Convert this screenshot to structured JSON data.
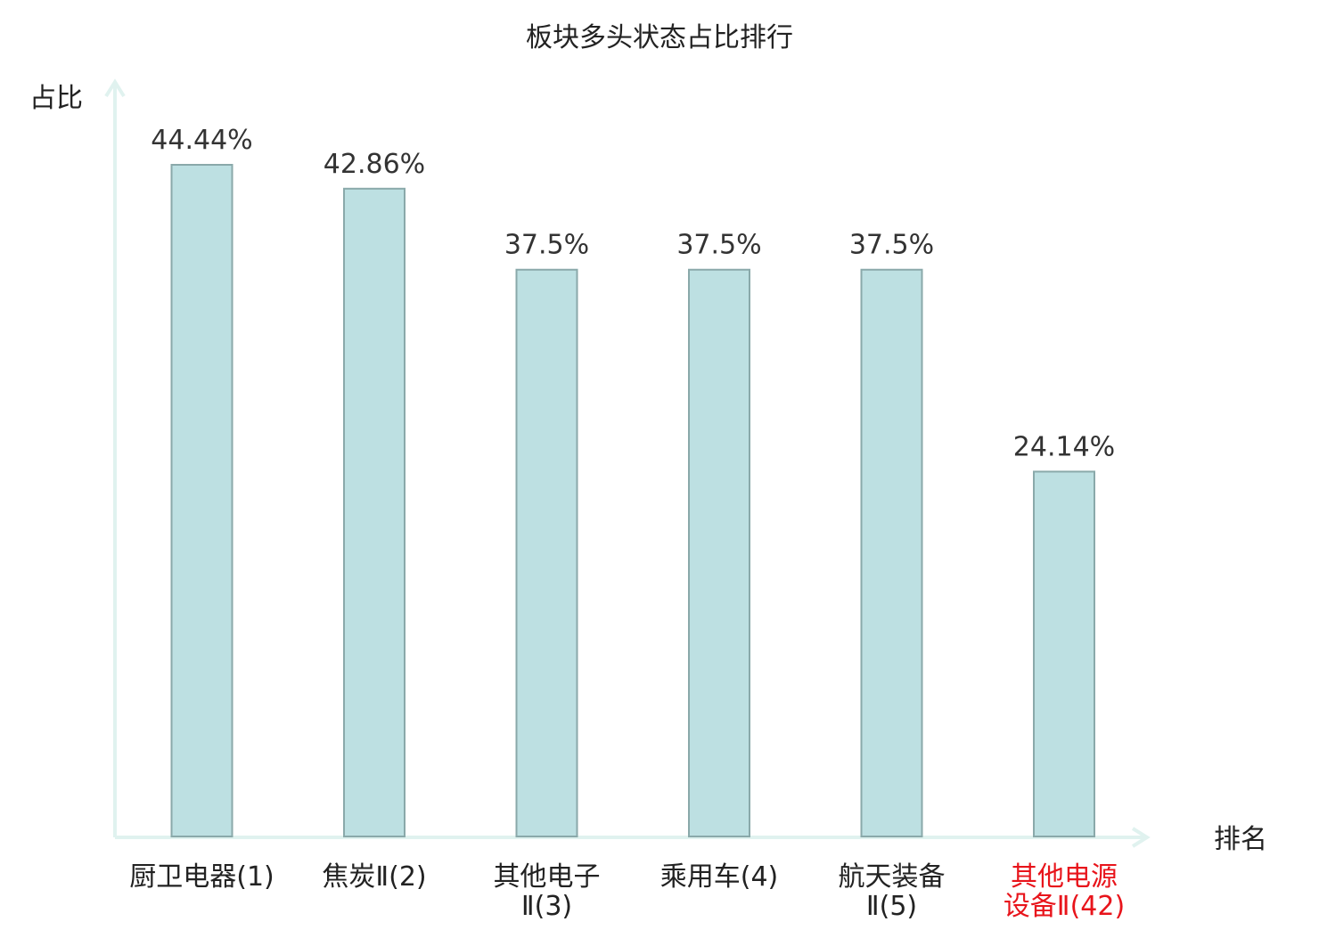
{
  "chart_data": {
    "type": "bar",
    "title": "板块多头状态占比排行",
    "xlabel": "排名",
    "ylabel": "占比",
    "categories": [
      [
        "厨卫电器(1)"
      ],
      [
        "焦炭Ⅱ(2)"
      ],
      [
        "其他电子",
        "Ⅱ(3)"
      ],
      [
        "乘用车(4)"
      ],
      [
        "航天装备",
        "Ⅱ(5)"
      ],
      [
        "其他电源",
        "设备Ⅱ(42)"
      ]
    ],
    "values": [
      44.44,
      42.86,
      37.5,
      37.5,
      37.5,
      24.14
    ],
    "value_labels": [
      "44.44%",
      "42.86%",
      "37.5%",
      "37.5%",
      "37.5%",
      "24.14%"
    ],
    "highlight_index": 5,
    "ylim": [
      0,
      44.44
    ],
    "colors": {
      "bar_fill": "#bde0e2",
      "bar_stroke": "#8aa9aa",
      "axis": "#e0f2ef",
      "text": "#333333",
      "highlight_text": "#e8141b"
    }
  }
}
